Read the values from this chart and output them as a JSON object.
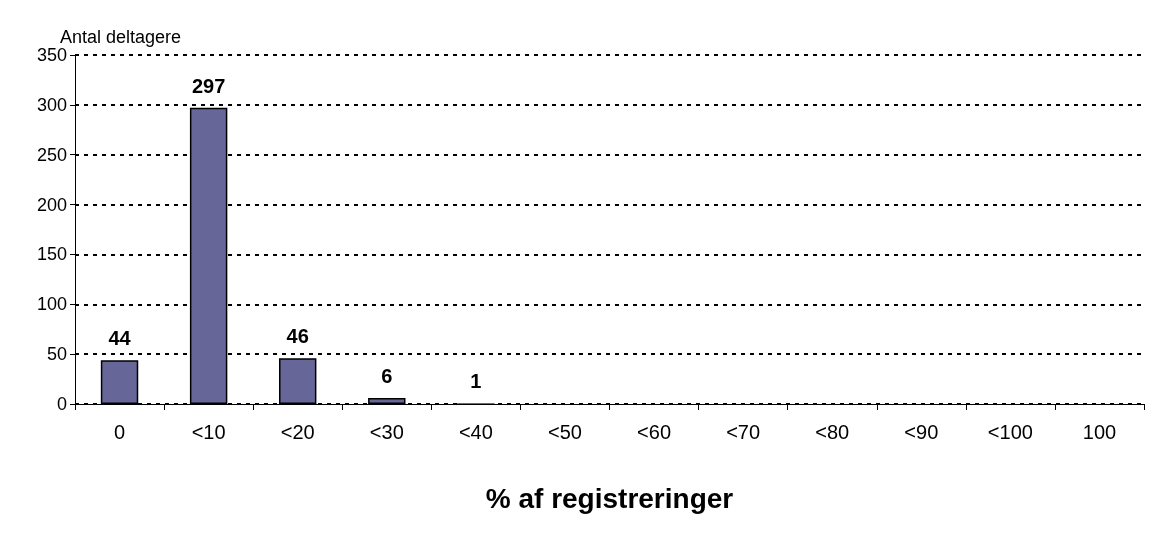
{
  "chart_data": {
    "type": "bar",
    "ylabel": "Antal deltagere",
    "xlabel": "% af registreringer",
    "categories": [
      "0",
      "<10",
      "<20",
      "<30",
      "<40",
      "<50",
      "<60",
      "<70",
      "<80",
      "<90",
      "<100",
      "100"
    ],
    "values": [
      44,
      297,
      46,
      6,
      1,
      0,
      0,
      0,
      0,
      0,
      0,
      0
    ],
    "value_labels": [
      "44",
      "297",
      "46",
      "6",
      "1",
      null,
      null,
      null,
      null,
      null,
      null,
      null
    ],
    "color": "#666699",
    "ylim": [
      0,
      350
    ],
    "yticks": [
      0,
      50,
      100,
      150,
      200,
      250,
      300,
      350
    ],
    "grid": "y"
  }
}
